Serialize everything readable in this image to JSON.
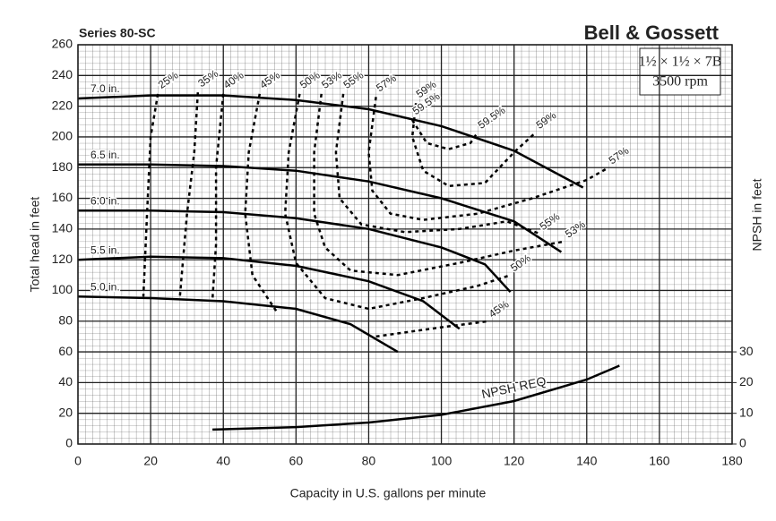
{
  "chart_data": {
    "type": "line",
    "title": "Series 80-SC",
    "brand": "Bell & Gossett",
    "model": "1½ × 1½ × 7B",
    "speed": "3500 rpm",
    "xlabel": "Capacity in U.S. gallons per minute",
    "ylabel": "Total head in feet",
    "y2label": "NPSH in feet",
    "xlim": [
      0,
      180
    ],
    "xticks": [
      0,
      20,
      40,
      60,
      80,
      100,
      120,
      140,
      160,
      180
    ],
    "ylim": [
      0,
      260
    ],
    "yticks": [
      0,
      20,
      40,
      60,
      80,
      100,
      120,
      140,
      160,
      180,
      200,
      220,
      240,
      260
    ],
    "y2lim": [
      0,
      130
    ],
    "y2ticks": [
      0,
      10,
      20,
      30
    ],
    "grid": true,
    "series": [
      {
        "name": "7.0 in.",
        "color": "#000000",
        "dash": false,
        "x": [
          0,
          20,
          40,
          60,
          80,
          100,
          120,
          139
        ],
        "values": [
          225,
          227,
          227,
          224,
          218,
          207,
          191,
          167
        ]
      },
      {
        "name": "6.5 in.",
        "color": "#000000",
        "dash": false,
        "x": [
          0,
          20,
          40,
          60,
          80,
          100,
          120,
          133
        ],
        "values": [
          182,
          182,
          181,
          178,
          171,
          160,
          145,
          125
        ]
      },
      {
        "name": "6.0 in.",
        "color": "#000000",
        "dash": false,
        "x": [
          0,
          20,
          40,
          60,
          80,
          100,
          112,
          119
        ],
        "values": [
          152,
          152,
          151,
          147,
          140,
          128,
          117,
          99
        ]
      },
      {
        "name": "5.5 in.",
        "color": "#000000",
        "dash": false,
        "x": [
          0,
          20,
          40,
          60,
          80,
          95,
          105
        ],
        "values": [
          120,
          122,
          121,
          116,
          106,
          93,
          75
        ]
      },
      {
        "name": "5.0 in.",
        "color": "#000000",
        "dash": false,
        "x": [
          0,
          20,
          40,
          60,
          75,
          88
        ],
        "values": [
          96,
          95,
          93,
          88,
          78,
          60
        ]
      },
      {
        "name": "25%",
        "color": "#000000",
        "dash": true,
        "x": [
          22,
          20,
          19,
          18
        ],
        "values": [
          228,
          200,
          150,
          96
        ]
      },
      {
        "name": "35%",
        "color": "#000000",
        "dash": true,
        "x": [
          33,
          32,
          30,
          28
        ],
        "values": [
          229,
          190,
          150,
          95
        ]
      },
      {
        "name": "40%",
        "color": "#000000",
        "dash": true,
        "x": [
          40,
          38,
          38,
          37
        ],
        "values": [
          228,
          180,
          130,
          94
        ]
      },
      {
        "name": "45%",
        "color": "#000000",
        "dash": true,
        "x": [
          50,
          47,
          46,
          48,
          55,
          null,
          82,
          100,
          113
        ],
        "values": [
          228,
          190,
          150,
          110,
          85,
          null,
          70,
          76,
          80
        ]
      },
      {
        "name": "50%",
        "color": "#000000",
        "dash": true,
        "x": [
          61,
          58,
          57,
          60,
          68,
          80,
          95,
          110,
          119
        ],
        "values": [
          228,
          190,
          150,
          118,
          95,
          88,
          95,
          103,
          110
        ]
      },
      {
        "name": "53%",
        "color": "#000000",
        "dash": true,
        "x": [
          67,
          65,
          65,
          68,
          75,
          88,
          105,
          120,
          134
        ],
        "values": [
          228,
          190,
          150,
          128,
          113,
          110,
          118,
          126,
          132
        ]
      },
      {
        "name": "55%",
        "color": "#000000",
        "dash": true,
        "x": [
          73,
          71,
          72,
          78,
          90,
          105,
          118,
          127
        ],
        "values": [
          228,
          190,
          160,
          143,
          138,
          140,
          145,
          137
        ]
      },
      {
        "name": "57%",
        "color": "#000000",
        "dash": true,
        "x": [
          82,
          80,
          81,
          86,
          95,
          110,
          125,
          140,
          146
        ],
        "values": [
          226,
          190,
          165,
          150,
          146,
          150,
          160,
          172,
          180
        ]
      },
      {
        "name": "59%",
        "color": "#000000",
        "dash": true,
        "x": [
          93,
          92,
          95,
          102,
          112,
          120,
          126
        ],
        "values": [
          222,
          200,
          178,
          168,
          170,
          190,
          203
        ]
      },
      {
        "name": "59.5%",
        "color": "#000000",
        "dash": true,
        "x": [
          92,
          96,
          102,
          108,
          110
        ],
        "values": [
          211,
          196,
          192,
          196,
          203
        ]
      },
      {
        "name": "NPSH REQ",
        "color": "#000000",
        "dash": false,
        "axis": "y2",
        "x": [
          37,
          60,
          80,
          100,
          120,
          140,
          149
        ],
        "values": [
          4.7,
          5.5,
          7,
          9.5,
          14,
          21,
          25.5
        ]
      }
    ]
  }
}
